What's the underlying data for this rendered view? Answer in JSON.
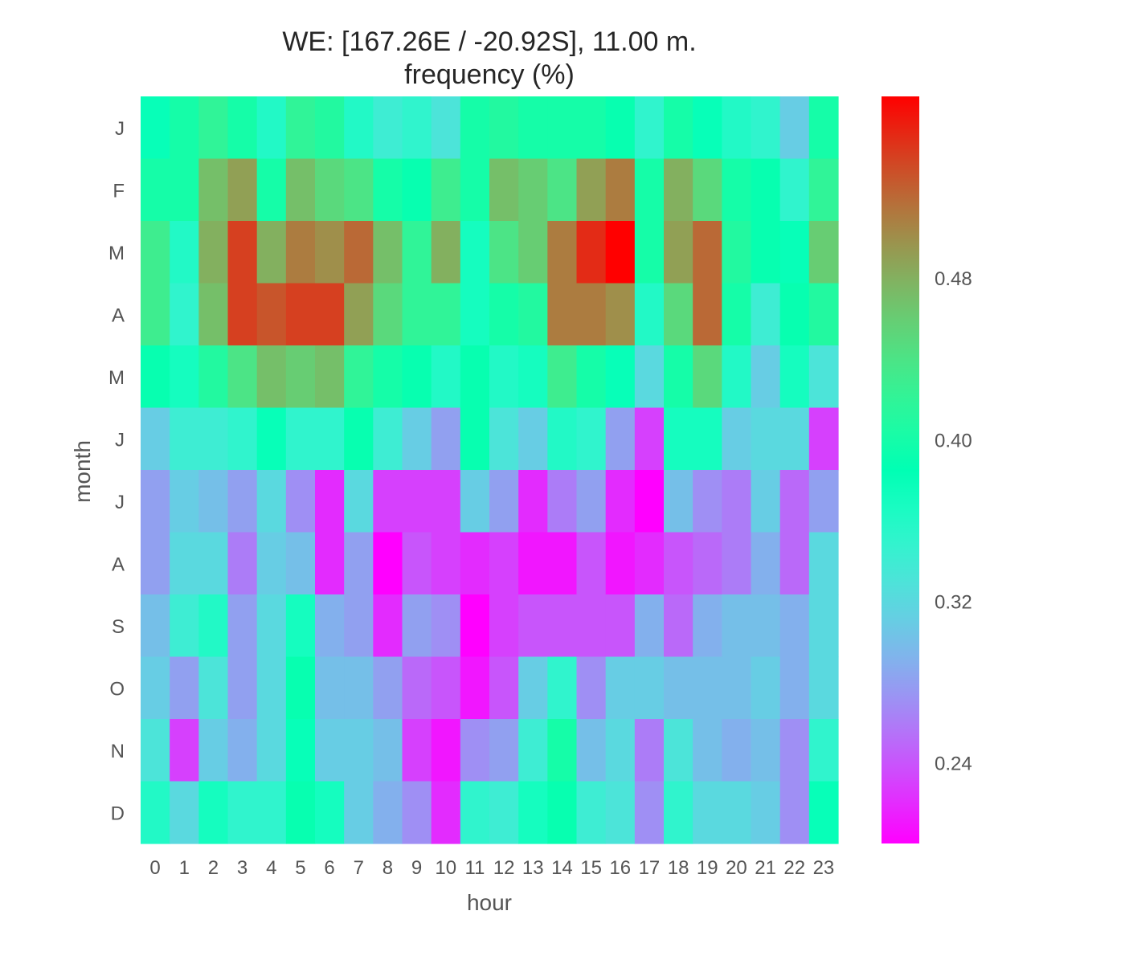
{
  "chart_data": {
    "type": "heatmap",
    "title": "WE: [167.26E / -20.92S], 11.00 m.",
    "subtitle": "frequency (%)",
    "xlabel": "hour",
    "ylabel": "month",
    "x_ticks": [
      "0",
      "1",
      "2",
      "3",
      "4",
      "5",
      "6",
      "7",
      "8",
      "9",
      "10",
      "11",
      "12",
      "13",
      "14",
      "15",
      "16",
      "17",
      "18",
      "19",
      "20",
      "21",
      "22",
      "23"
    ],
    "y_ticks": [
      "J",
      "F",
      "M",
      "A",
      "M",
      "J",
      "J",
      "A",
      "S",
      "O",
      "N",
      "D"
    ],
    "colormap": "rainbow",
    "colorbar": {
      "vmin": 0.2,
      "vmax": 0.57,
      "ticks": [
        0.24,
        0.32,
        0.4,
        0.48
      ],
      "tick_labels": [
        "0.24",
        "0.32",
        "0.40",
        "0.48"
      ]
    },
    "grid": false,
    "values": [
      [
        0.38,
        0.4,
        0.42,
        0.4,
        0.36,
        0.42,
        0.41,
        0.36,
        0.34,
        0.35,
        0.33,
        0.4,
        0.41,
        0.4,
        0.4,
        0.4,
        0.39,
        0.35,
        0.4,
        0.38,
        0.36,
        0.35,
        0.31,
        0.4
      ],
      [
        0.4,
        0.4,
        0.47,
        0.49,
        0.4,
        0.47,
        0.45,
        0.44,
        0.4,
        0.39,
        0.43,
        0.4,
        0.47,
        0.46,
        0.44,
        0.49,
        0.51,
        0.4,
        0.48,
        0.45,
        0.4,
        0.39,
        0.35,
        0.42
      ],
      [
        0.43,
        0.36,
        0.48,
        0.54,
        0.48,
        0.51,
        0.5,
        0.52,
        0.47,
        0.42,
        0.48,
        0.37,
        0.44,
        0.46,
        0.51,
        0.55,
        0.57,
        0.4,
        0.49,
        0.52,
        0.41,
        0.39,
        0.38,
        0.46
      ],
      [
        0.43,
        0.35,
        0.47,
        0.54,
        0.53,
        0.54,
        0.54,
        0.49,
        0.45,
        0.42,
        0.42,
        0.37,
        0.4,
        0.41,
        0.51,
        0.51,
        0.5,
        0.36,
        0.45,
        0.52,
        0.4,
        0.34,
        0.39,
        0.41
      ],
      [
        0.39,
        0.37,
        0.41,
        0.44,
        0.47,
        0.46,
        0.47,
        0.42,
        0.4,
        0.39,
        0.36,
        0.39,
        0.36,
        0.37,
        0.43,
        0.4,
        0.38,
        0.32,
        0.4,
        0.45,
        0.36,
        0.31,
        0.37,
        0.33
      ],
      [
        0.31,
        0.34,
        0.34,
        0.35,
        0.38,
        0.35,
        0.35,
        0.39,
        0.34,
        0.31,
        0.28,
        0.39,
        0.33,
        0.31,
        0.36,
        0.35,
        0.28,
        0.23,
        0.37,
        0.37,
        0.31,
        0.32,
        0.32,
        0.23
      ],
      [
        0.28,
        0.31,
        0.3,
        0.28,
        0.32,
        0.27,
        0.22,
        0.32,
        0.23,
        0.23,
        0.23,
        0.31,
        0.28,
        0.22,
        0.26,
        0.28,
        0.22,
        0.2,
        0.3,
        0.27,
        0.26,
        0.31,
        0.25,
        0.28
      ],
      [
        0.28,
        0.32,
        0.32,
        0.26,
        0.31,
        0.3,
        0.22,
        0.28,
        0.2,
        0.24,
        0.23,
        0.22,
        0.23,
        0.21,
        0.21,
        0.24,
        0.21,
        0.22,
        0.24,
        0.25,
        0.26,
        0.29,
        0.25,
        0.32
      ],
      [
        0.3,
        0.34,
        0.36,
        0.28,
        0.32,
        0.37,
        0.29,
        0.28,
        0.22,
        0.28,
        0.27,
        0.2,
        0.23,
        0.24,
        0.24,
        0.24,
        0.24,
        0.29,
        0.25,
        0.29,
        0.3,
        0.3,
        0.29,
        0.32
      ],
      [
        0.31,
        0.28,
        0.33,
        0.28,
        0.32,
        0.39,
        0.3,
        0.3,
        0.28,
        0.25,
        0.24,
        0.21,
        0.24,
        0.31,
        0.35,
        0.27,
        0.31,
        0.31,
        0.3,
        0.3,
        0.3,
        0.31,
        0.29,
        0.32
      ],
      [
        0.33,
        0.23,
        0.31,
        0.29,
        0.32,
        0.38,
        0.31,
        0.31,
        0.3,
        0.23,
        0.21,
        0.27,
        0.28,
        0.34,
        0.4,
        0.3,
        0.32,
        0.26,
        0.33,
        0.3,
        0.29,
        0.3,
        0.27,
        0.35
      ],
      [
        0.36,
        0.32,
        0.37,
        0.35,
        0.35,
        0.39,
        0.37,
        0.31,
        0.29,
        0.27,
        0.22,
        0.35,
        0.34,
        0.37,
        0.39,
        0.34,
        0.33,
        0.27,
        0.35,
        0.32,
        0.32,
        0.31,
        0.27,
        0.38
      ]
    ]
  }
}
